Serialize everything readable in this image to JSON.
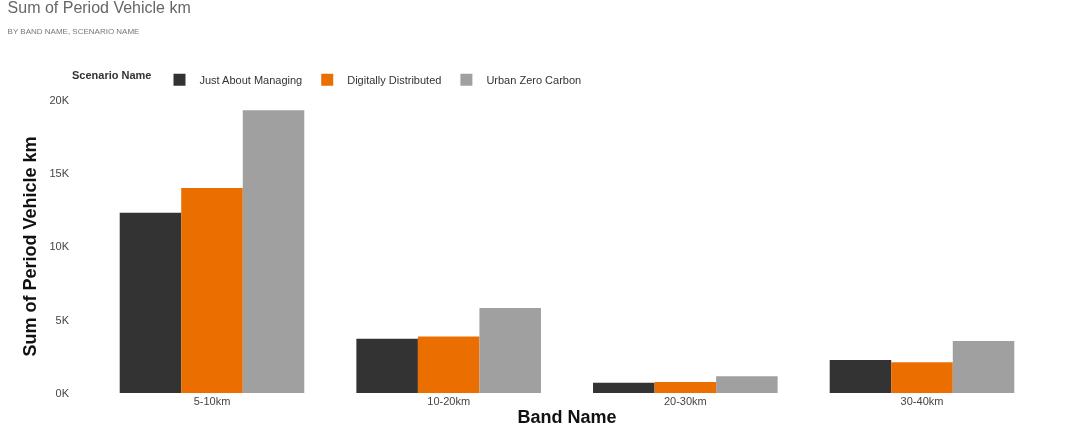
{
  "chart_data": {
    "type": "bar",
    "title": "Sum of Period Vehicle km",
    "subtitle": "BY BAND NAME, SCENARIO NAME",
    "xlabel": "Band Name",
    "ylabel": "Sum of Period Vehicle km",
    "legend_title": "Scenario Name",
    "legend": "top left",
    "grid": false,
    "categories": [
      "5-10km",
      "10-20km",
      "20-30km",
      "30-40km"
    ],
    "ylim": [
      0,
      20000
    ],
    "yticks": [
      {
        "value": 0,
        "label": "0K"
      },
      {
        "value": 5000,
        "label": "5K"
      },
      {
        "value": 10000,
        "label": "10K"
      },
      {
        "value": 15000,
        "label": "15K"
      },
      {
        "value": 20000,
        "label": "20K"
      }
    ],
    "series": [
      {
        "name": "Just About Managing",
        "color": "#333333",
        "values": [
          12300,
          3700,
          700,
          2250
        ]
      },
      {
        "name": "Digitally Distributed",
        "color": "#eb6f00",
        "values": [
          14000,
          3850,
          750,
          2100
        ]
      },
      {
        "name": "Urban Zero Carbon",
        "color": "#a0a0a0",
        "values": [
          19300,
          5800,
          1150,
          3550
        ]
      }
    ]
  }
}
